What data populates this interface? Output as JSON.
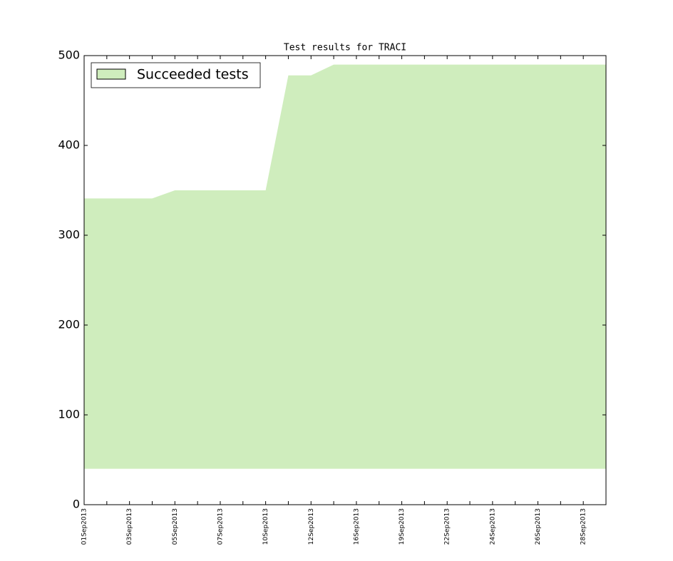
{
  "chart_data": {
    "type": "area",
    "title": "Test results for TRACI",
    "categories": [
      "01Sep2013",
      null,
      "03Sep2013",
      null,
      "05Sep2013",
      null,
      "07Sep2013",
      null,
      "10Sep2013",
      null,
      "12Sep2013",
      null,
      "16Sep2013",
      null,
      "19Sep2013",
      null,
      "22Sep2013",
      null,
      "24Sep2013",
      null,
      "26Sep2013",
      null,
      "28Sep2013",
      null
    ],
    "series": [
      {
        "name": "Succeeded tests",
        "color": "#cfedbd",
        "values": [
          341,
          341,
          341,
          341,
          350,
          350,
          350,
          350,
          350,
          478,
          478,
          490,
          490,
          490,
          490,
          490,
          490,
          490,
          490,
          490,
          490,
          490,
          490,
          490
        ],
        "lower": [
          40,
          40,
          40,
          40,
          40,
          40,
          40,
          40,
          40,
          40,
          40,
          40,
          40,
          40,
          40,
          40,
          40,
          40,
          40,
          40,
          40,
          40,
          40,
          40
        ]
      }
    ],
    "ylim": [
      0,
      500
    ],
    "yticks": [
      0,
      100,
      200,
      300,
      400,
      500
    ],
    "legend": "upper left"
  }
}
